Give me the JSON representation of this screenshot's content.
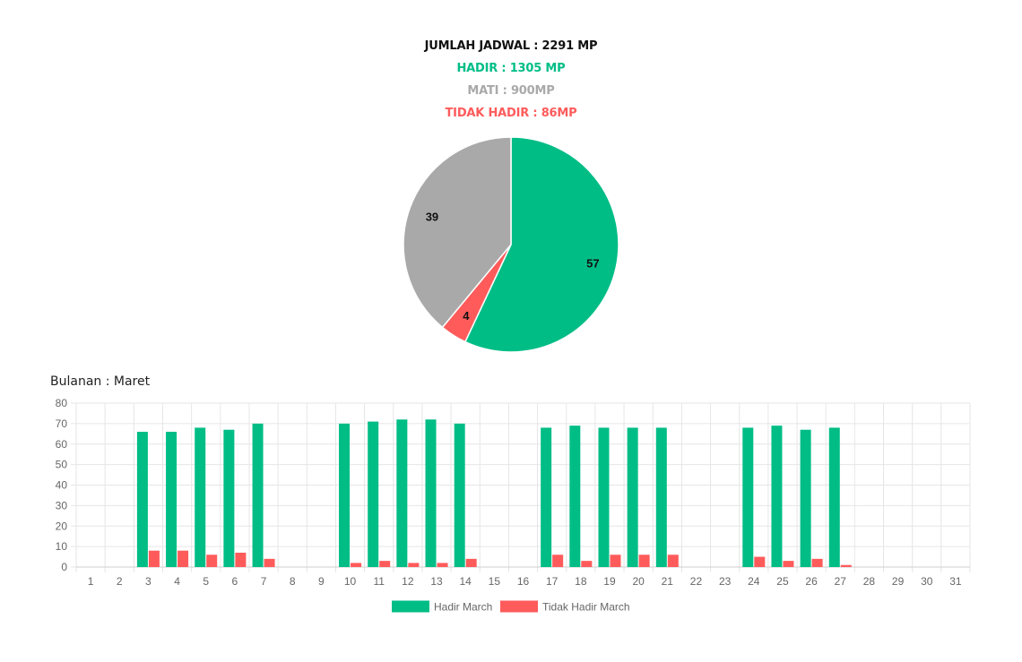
{
  "summary": {
    "total": "JUMLAH JADWAL : 2291 MP",
    "hadir": "HADIR : 1305 MP",
    "mati": "MATI : 900MP",
    "tidak_hadir": "TIDAK HADIR : 86MP"
  },
  "colors": {
    "hadir": "#00BD86",
    "mati": "#A9A9A9",
    "tidak_hadir": "#FF5B5B",
    "grid": "#E6E6E6",
    "axis_text": "#666666"
  },
  "chart_data": [
    {
      "type": "pie",
      "title": "",
      "slices": [
        {
          "label": "57",
          "value": 57,
          "color": "#00BD86"
        },
        {
          "label": "4",
          "value": 4,
          "color": "#FF5B5B"
        },
        {
          "label": "39",
          "value": 39,
          "color": "#A9A9A9"
        }
      ]
    },
    {
      "type": "bar",
      "title": "Bulanan : Maret",
      "categories": [
        "1",
        "2",
        "3",
        "4",
        "5",
        "6",
        "7",
        "8",
        "9",
        "10",
        "11",
        "12",
        "13",
        "14",
        "15",
        "16",
        "17",
        "18",
        "19",
        "20",
        "21",
        "22",
        "23",
        "24",
        "25",
        "26",
        "27",
        "28",
        "29",
        "30",
        "31"
      ],
      "series": [
        {
          "name": "Hadir March",
          "color": "#00BD86",
          "values": [
            0,
            0,
            66,
            66,
            68,
            67,
            70,
            0,
            0,
            70,
            71,
            72,
            72,
            70,
            0,
            0,
            68,
            69,
            68,
            68,
            68,
            0,
            0,
            68,
            69,
            67,
            68,
            0,
            0,
            0,
            0
          ]
        },
        {
          "name": "Tidak Hadir March",
          "color": "#FF5B5B",
          "values": [
            0,
            0,
            8,
            8,
            6,
            7,
            4,
            0,
            0,
            2,
            3,
            2,
            2,
            4,
            0,
            0,
            6,
            3,
            6,
            6,
            6,
            0,
            0,
            5,
            3,
            4,
            1,
            0,
            0,
            0,
            0
          ]
        }
      ],
      "ylim": [
        0,
        80
      ],
      "yticks": [
        0,
        10,
        20,
        30,
        40,
        50,
        60,
        70,
        80
      ],
      "grid": true,
      "legend": "bottom"
    }
  ]
}
